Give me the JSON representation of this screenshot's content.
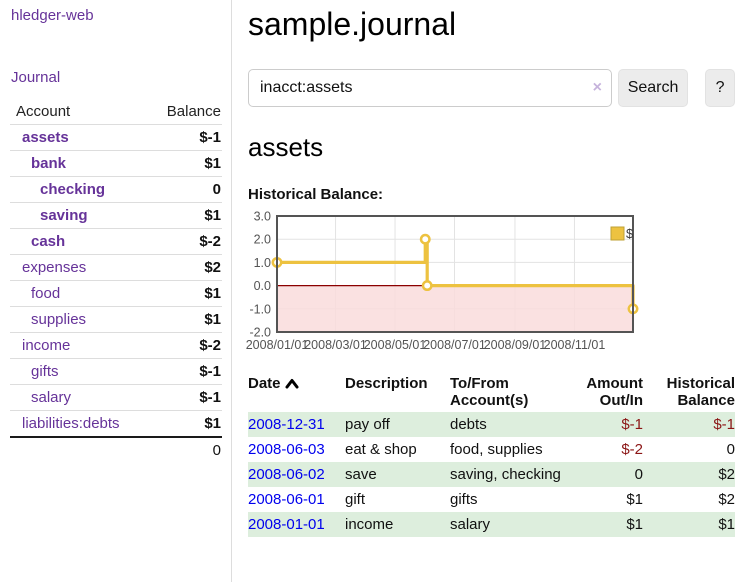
{
  "app": {
    "title": "hledger-web"
  },
  "sidebar": {
    "journal_link": "Journal",
    "accounts": {
      "account_header": "Account",
      "balance_header": "Balance",
      "rows": [
        {
          "name": "assets",
          "balance": "$-1"
        },
        {
          "name": "bank",
          "balance": "$1"
        },
        {
          "name": "checking",
          "balance": "0"
        },
        {
          "name": "saving",
          "balance": "$1"
        },
        {
          "name": "cash",
          "balance": "$-2"
        },
        {
          "name": "expenses",
          "balance": "$2"
        },
        {
          "name": "food",
          "balance": "$1"
        },
        {
          "name": "supplies",
          "balance": "$1"
        },
        {
          "name": "income",
          "balance": "$-2"
        },
        {
          "name": "gifts",
          "balance": "$-1"
        },
        {
          "name": "salary",
          "balance": "$-1"
        },
        {
          "name": "liabilities:debts",
          "balance": "$1"
        }
      ],
      "total": "0"
    }
  },
  "main": {
    "title": "sample.journal",
    "search": {
      "value": "inacct:assets",
      "clear_icon": "×",
      "search_label": "Search",
      "help_label": "?"
    },
    "account_title": "assets",
    "chart_heading": "Historical Balance:"
  },
  "chart_data": {
    "type": "line",
    "step": true,
    "title": "Historical Balance",
    "series": [
      {
        "name": "$",
        "color": "#edc240",
        "points": [
          [
            "2008-01-01",
            1.0
          ],
          [
            "2008-06-01",
            2.0
          ],
          [
            "2008-06-03",
            0.0
          ],
          [
            "2008-12-31",
            -1.0
          ]
        ]
      }
    ],
    "x_ticks": [
      "2008/01/01",
      "2008/03/01",
      "2008/05/01",
      "2008/07/01",
      "2008/09/01",
      "2008/11/01"
    ],
    "y_ticks": [
      "3.0",
      "2.0",
      "1.0",
      "0.0",
      "-1.0",
      "-2.0"
    ],
    "xlim": [
      "2008-01-01",
      "2008-12-31"
    ],
    "ylim": [
      -2.0,
      3.0
    ],
    "grid": true,
    "legend": {
      "label": "$",
      "position": "top-right"
    },
    "negative_region_fill": "#f9dcdc",
    "zero_line_color": "#8b0000",
    "axis_color": "#545454"
  },
  "register": {
    "headers": {
      "date": "Date",
      "description": "Description",
      "accounts": "To/From Account(s)",
      "amount": "Amount Out/In",
      "balance": "Historical Balance"
    },
    "rows": [
      {
        "date": "2008-12-31",
        "description": "pay off",
        "accounts": "debts",
        "amount": "$-1",
        "balance": "$-1"
      },
      {
        "date": "2008-06-03",
        "description": "eat & shop",
        "accounts": "food, supplies",
        "amount": "$-2",
        "balance": "0"
      },
      {
        "date": "2008-06-02",
        "description": "save",
        "accounts": "saving, checking",
        "amount": "0",
        "balance": "$2"
      },
      {
        "date": "2008-06-01",
        "description": "gift",
        "accounts": "gifts",
        "amount": "$1",
        "balance": "$2"
      },
      {
        "date": "2008-01-01",
        "description": "income",
        "accounts": "salary",
        "amount": "$1",
        "balance": "$1"
      }
    ]
  },
  "colors": {
    "accent_purple": "#663399",
    "link_blue": "#0000ee",
    "negative_strong": "#8b1515",
    "negative_soft": "#b66a74",
    "row_stripe_green": "#ddeedd",
    "chart_series_yellow": "#edc240",
    "chart_border_gray": "#545454"
  }
}
